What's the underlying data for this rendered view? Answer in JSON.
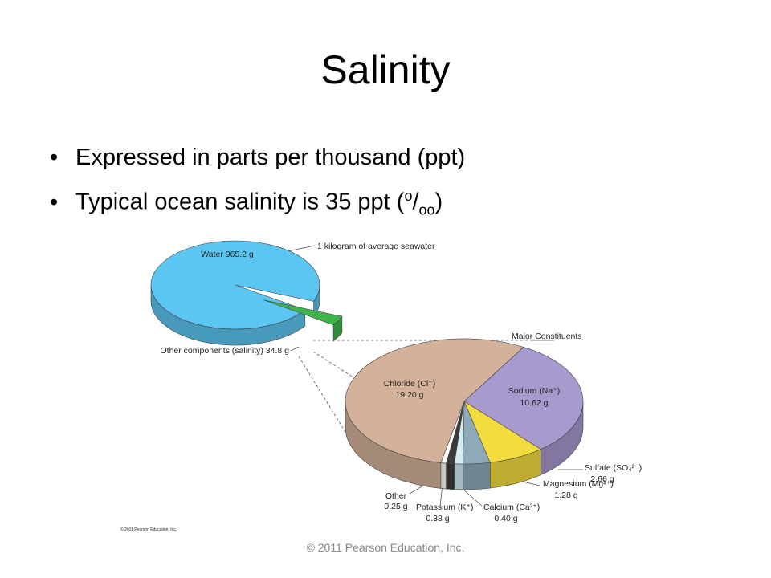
{
  "title": "Salinity",
  "bullets": [
    {
      "text": "Expressed in parts per thousand (ppt)"
    },
    {
      "text": "Typical ocean salinity is 35 ppt (",
      "sup": "o",
      "slash": "/",
      "sub": "oo",
      "close": ")"
    }
  ],
  "figure": {
    "seawater": {
      "caption": "1 kilogram of average seawater",
      "values": [
        965.2,
        34.8
      ],
      "value_labels": [
        "Water 965.2 g",
        "Other components (salinity) 34.8 g"
      ],
      "colors": [
        "#5cc6f2",
        "#3db54a"
      ]
    },
    "constituents": {
      "caption": "Major Constituents",
      "names": [
        "Chloride (Cl⁻)",
        "Sodium (Na⁺)",
        "Sulfate (SO₄²⁻)",
        "Magnesium (Mg²⁺)",
        "Calcium (Ca²⁺)",
        "Potassium (K⁺)",
        "Other"
      ],
      "values": [
        19.2,
        10.62,
        2.66,
        1.28,
        0.4,
        0.38,
        0.25
      ],
      "value_labels": [
        "19.20 g",
        "10.62 g",
        "2.66 g",
        "1.28 g",
        "0.40 g",
        "0.38 g",
        "0.25 g"
      ],
      "colors": [
        "#d3b19a",
        "#a899cf",
        "#f2dc3e",
        "#8eaab8",
        "#d4ecf2",
        "#3a3a3a",
        "#ffffff"
      ]
    },
    "credit": "© 2011 Pearson Education, Inc."
  },
  "footer": "© 2011 Pearson Education, Inc."
}
